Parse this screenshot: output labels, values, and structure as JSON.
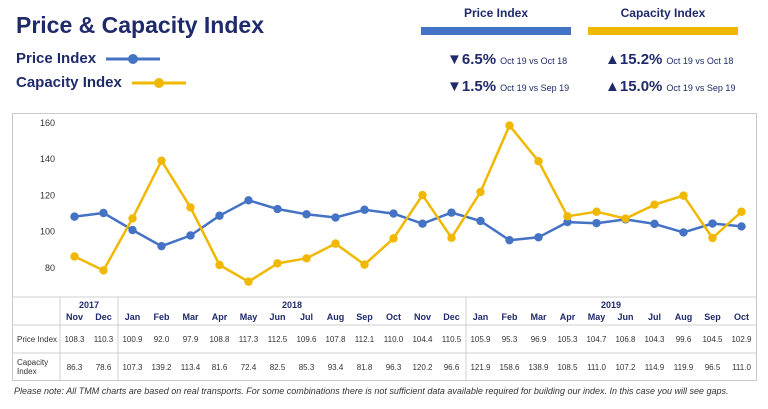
{
  "header": {
    "title": "Price & Capacity Index",
    "legend_price": "Price Index",
    "legend_capacity": "Capacity Index",
    "col_price": "Price Index",
    "col_capacity": "Capacity Index"
  },
  "stats": {
    "price_yoy": {
      "arrow": "▼",
      "value": "6.5%",
      "desc": "Oct 19 vs Oct 18"
    },
    "price_mom": {
      "arrow": "▼",
      "value": "1.5%",
      "desc": "Oct 19 vs Sep 19"
    },
    "cap_yoy": {
      "arrow": "▲",
      "value": "15.2%",
      "desc": "Oct 19 vs Oct 18"
    },
    "cap_mom": {
      "arrow": "▲",
      "value": "15.0%",
      "desc": "Oct 19 vs Sep 19"
    }
  },
  "colors": {
    "price": "#4472c4",
    "capacity": "#f0b800",
    "title": "#1f2a6b"
  },
  "chart_data": {
    "type": "line",
    "ylim": [
      70,
      160
    ],
    "yticks": [
      80,
      100,
      120,
      140,
      160
    ],
    "grid": false,
    "years": [
      {
        "label": "2017",
        "span": 2
      },
      {
        "label": "2018",
        "span": 12
      },
      {
        "label": "2019",
        "span": 10
      }
    ],
    "categories": [
      "Nov",
      "Dec",
      "Jan",
      "Feb",
      "Mar",
      "Apr",
      "May",
      "Jun",
      "Jul",
      "Aug",
      "Sep",
      "Oct",
      "Nov",
      "Dec",
      "Jan",
      "Feb",
      "Mar",
      "Apr",
      "May",
      "Jun",
      "Jul",
      "Aug",
      "Sep",
      "Oct"
    ],
    "series": [
      {
        "name": "Price Index",
        "row_label": "Price Index",
        "color": "#4472c4",
        "values": [
          108.3,
          110.3,
          100.9,
          92.0,
          97.9,
          108.8,
          117.3,
          112.5,
          109.6,
          107.8,
          112.1,
          110.0,
          104.4,
          110.5,
          105.9,
          95.3,
          96.9,
          105.3,
          104.7,
          106.8,
          104.3,
          99.6,
          104.5,
          102.9
        ]
      },
      {
        "name": "Capacity Index",
        "row_label": "Capacity Index",
        "color": "#f0b800",
        "values": [
          86.3,
          78.6,
          107.3,
          139.2,
          113.4,
          81.6,
          72.4,
          82.5,
          85.3,
          93.4,
          81.8,
          96.3,
          120.2,
          96.6,
          121.9,
          158.6,
          138.9,
          108.5,
          111.0,
          107.2,
          114.9,
          119.9,
          96.5,
          111.0
        ]
      }
    ]
  },
  "note": "Please note: All TMM charts are based on real transports. For some combinations there is not sufficient data available required for building our index. In this case you will see gaps."
}
